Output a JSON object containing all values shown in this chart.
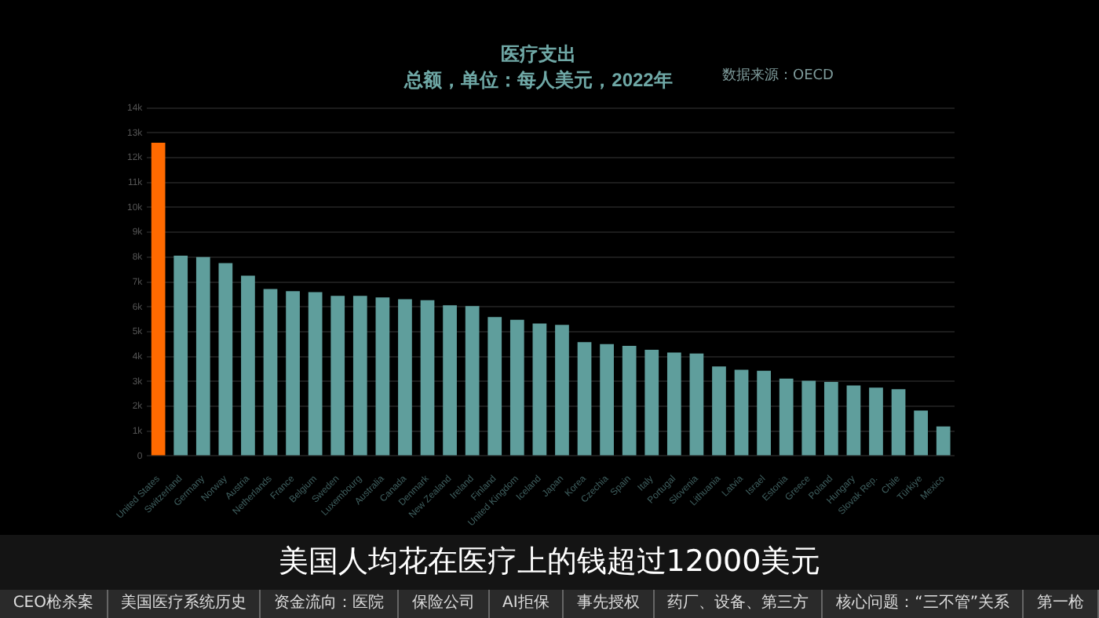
{
  "chart_data": {
    "type": "bar",
    "title": "医疗支出",
    "subtitle": "总额，单位：每人美元，2022年",
    "categories": [
      "United States",
      "Switzerland",
      "Germany",
      "Norway",
      "Austria",
      "Netherlands",
      "France",
      "Belgium",
      "Sweden",
      "Luxembourg",
      "Australia",
      "Canada",
      "Denmark",
      "New Zealand",
      "Ireland",
      "Finland",
      "United Kingdom",
      "Iceland",
      "Japan",
      "Korea",
      "Czechia",
      "Spain",
      "Italy",
      "Portugal",
      "Slovenia",
      "Lithuania",
      "Latvia",
      "Israel",
      "Estonia",
      "Greece",
      "Poland",
      "Hungary",
      "Slovak Rep.",
      "Chile",
      "Türkiye",
      "Mexico"
    ],
    "values": [
      12600,
      8060,
      8000,
      7760,
      7250,
      6720,
      6630,
      6590,
      6440,
      6440,
      6380,
      6310,
      6270,
      6060,
      6030,
      5590,
      5480,
      5330,
      5270,
      4580,
      4500,
      4430,
      4270,
      4160,
      4120,
      3600,
      3470,
      3430,
      3110,
      3030,
      2980,
      2840,
      2750,
      2690,
      1830,
      1190
    ],
    "colors": [
      "#ff6a00",
      "#5f9e9c",
      "#5f9e9c",
      "#5f9e9c",
      "#5f9e9c",
      "#5f9e9c",
      "#5f9e9c",
      "#5f9e9c",
      "#5f9e9c",
      "#5f9e9c",
      "#5f9e9c",
      "#5f9e9c",
      "#5f9e9c",
      "#5f9e9c",
      "#5f9e9c",
      "#5f9e9c",
      "#5f9e9c",
      "#5f9e9c",
      "#5f9e9c",
      "#5f9e9c",
      "#5f9e9c",
      "#5f9e9c",
      "#5f9e9c",
      "#5f9e9c",
      "#5f9e9c",
      "#5f9e9c",
      "#5f9e9c",
      "#5f9e9c",
      "#5f9e9c",
      "#5f9e9c",
      "#5f9e9c",
      "#5f9e9c",
      "#5f9e9c",
      "#5f9e9c",
      "#5f9e9c",
      "#5f9e9c"
    ],
    "ylim": [
      0,
      14000
    ],
    "yticks": [
      0,
      {
        "value": 1000,
        "label": "1k"
      },
      {
        "value": 2000,
        "label": "2k"
      },
      {
        "value": 3000,
        "label": "3k"
      },
      {
        "value": 4000,
        "label": "4k"
      },
      {
        "value": 5000,
        "label": "5k"
      },
      {
        "value": 6000,
        "label": "6k"
      },
      {
        "value": 7000,
        "label": "7k"
      },
      {
        "value": 8000,
        "label": "8k"
      },
      {
        "value": 9000,
        "label": "9k"
      },
      {
        "value": 10000,
        "label": "10k"
      },
      {
        "value": 11000,
        "label": "11k"
      },
      {
        "value": 12000,
        "label": "12k"
      },
      {
        "value": 13000,
        "label": "13k"
      },
      {
        "value": 14000,
        "label": "14k"
      }
    ],
    "grid": "y",
    "legend": false,
    "annotations": [
      "数据来源：OECD",
      "美国人均花在医疗上的钱超过12000美元",
      "CEO枪杀案",
      "美国医疗系统历史",
      "资金流向：医院",
      "保险公司",
      "AI拒保",
      "事先授权",
      "药厂、设备、第三方",
      "核心问题：“三不管”关系",
      "第一枪"
    ]
  }
}
